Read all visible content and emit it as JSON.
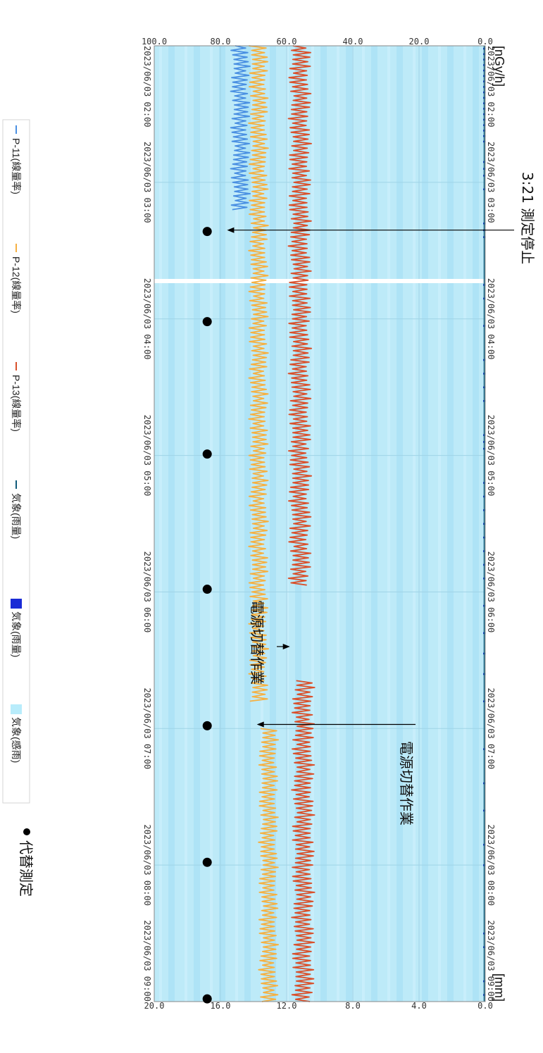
{
  "chart_data": {
    "type": "line",
    "units": {
      "left": "[nGy/h]",
      "right": "[mm]"
    },
    "y_left_ticks": [
      "0.0",
      "20.0",
      "40.0",
      "60.0",
      "80.0",
      "100.0"
    ],
    "ylim_left": [
      0,
      100
    ],
    "y_right_ticks": [
      "0.0",
      "4.0",
      "8.0",
      "12.0",
      "16.0",
      "20.0"
    ],
    "ylim_right": [
      0,
      20
    ],
    "x_tick_labels": [
      "2023/06/03 02:00",
      "2023/06/03 03:00",
      "2023/06/03 04:00",
      "2023/06/03 05:00",
      "2023/06/03 06:00",
      "2023/06/03 07:00",
      "2023/06/03 08:00",
      "2023/06/03 09:00"
    ],
    "x_range_hours": [
      2.0,
      9.0
    ],
    "series": [
      {
        "name": "P-11(線量率)",
        "color": "#4a90e2",
        "axis": "left",
        "segments": [
          {
            "x_start": 2.0,
            "x_end": 3.2,
            "mean": 74,
            "amplitude": 3
          }
        ]
      },
      {
        "name": "P-12(線量率)",
        "color": "#f5b042",
        "axis": "left",
        "segments": [
          {
            "x_start": 2.0,
            "x_end": 6.8,
            "mean": 68.5,
            "amplitude": 3
          },
          {
            "x_start": 7.0,
            "x_end": 9.0,
            "mean": 65.5,
            "amplitude": 3
          }
        ]
      },
      {
        "name": "P-13(線量率)",
        "color": "#d9502b",
        "axis": "left",
        "segments": [
          {
            "x_start": 2.0,
            "x_end": 5.95,
            "mean": 56,
            "amplitude": 3.5
          },
          {
            "x_start": 6.65,
            "x_end": 9.0,
            "mean": 55,
            "amplitude": 3.5
          }
        ]
      }
    ],
    "rain_series": {
      "name": "気象(雨量)",
      "color": "#1a2bd6",
      "axis": "right",
      "marks": [
        2.02,
        2.06,
        2.1,
        2.14,
        2.18,
        2.22,
        2.26,
        2.3,
        2.34,
        2.38,
        2.42,
        2.46,
        2.5,
        2.54,
        2.58,
        2.62,
        2.66,
        2.7,
        2.85,
        2.9,
        2.95,
        3.05,
        3.3,
        3.35,
        3.4,
        3.75,
        3.85,
        4.05,
        4.3,
        4.4,
        4.5,
        4.6,
        4.85,
        4.9,
        4.95,
        5.2,
        5.3,
        5.4,
        5.5,
        5.6,
        5.7,
        5.8,
        5.9,
        6.1,
        6.3,
        6.45,
        6.6,
        6.8,
        7.15,
        7.4,
        7.6,
        7.85,
        8.0,
        8.5,
        8.6,
        8.85,
        8.95
      ],
      "values_mm": 0.1
    },
    "alt_measurement_points": [
      3.36,
      4.02,
      4.99,
      5.98,
      6.98,
      7.98,
      8.98
    ],
    "alt_measurement_level": 84,
    "legend": {
      "placement": "bottom",
      "items": [
        {
          "label": "P-11(線量率)",
          "color": "#4a90e2",
          "kind": "line"
        },
        {
          "label": "P-12(線量率)",
          "color": "#f5b042",
          "kind": "line"
        },
        {
          "label": "P-13(線量率)",
          "color": "#d9502b",
          "kind": "line"
        },
        {
          "label": "気象(雨量)",
          "color": "#0f5a7a",
          "kind": "line"
        },
        {
          "label": "気象(雨量)",
          "color": "#1a2bd6",
          "kind": "block"
        },
        {
          "label": "気象(感雨)",
          "color": "#b8ecfb",
          "kind": "block"
        }
      ]
    },
    "annotations": [
      {
        "text": "3:21 測定停止",
        "x": 3.35,
        "y": 78
      },
      {
        "text": "電源切替作業",
        "x": 6.4,
        "y": 59
      },
      {
        "text": "電源切替作業",
        "x": 6.97,
        "y": 69
      }
    ],
    "alt_marker_label": "代替測定",
    "background_color": "#bdeaf8",
    "grid": true
  }
}
